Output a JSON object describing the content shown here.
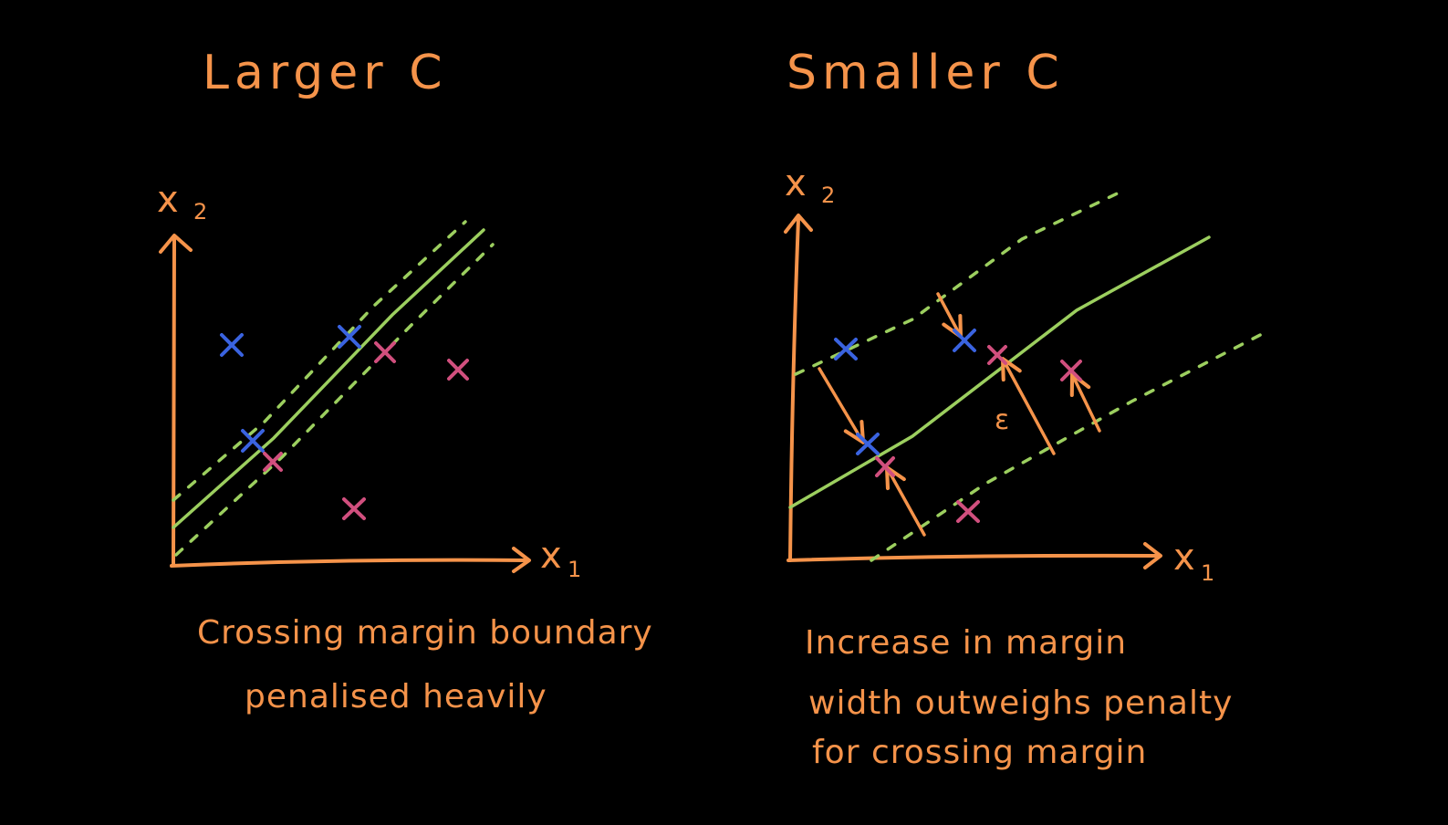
{
  "colors": {
    "background": "#000000",
    "ink_orange": "#f5934a",
    "boundary_green": "#9ccf5f",
    "class_blue": "#3a63e0",
    "class_pink": "#d14f7e"
  },
  "left_panel": {
    "title": "Larger C",
    "x_axis_label": "x",
    "x_axis_subscript": "1",
    "y_axis_label": "x",
    "y_axis_subscript": "2",
    "caption_line1": "Crossing margin boundary",
    "caption_line2": "penalised heavily",
    "points": [
      {
        "class": "blue"
      },
      {
        "class": "blue"
      },
      {
        "class": "blue"
      },
      {
        "class": "pink"
      },
      {
        "class": "pink"
      },
      {
        "class": "pink"
      },
      {
        "class": "pink"
      }
    ]
  },
  "right_panel": {
    "title": "Smaller C",
    "x_axis_label": "x",
    "x_axis_subscript": "1",
    "y_axis_label": "x",
    "y_axis_subscript": "2",
    "slack_label": "ε",
    "caption_line1": "Increase in margin",
    "caption_line2": "width outweighs penalty",
    "caption_line3": "for crossing margin",
    "points": [
      {
        "class": "blue"
      },
      {
        "class": "blue"
      },
      {
        "class": "blue"
      },
      {
        "class": "pink"
      },
      {
        "class": "pink"
      },
      {
        "class": "pink"
      },
      {
        "class": "pink"
      }
    ]
  }
}
